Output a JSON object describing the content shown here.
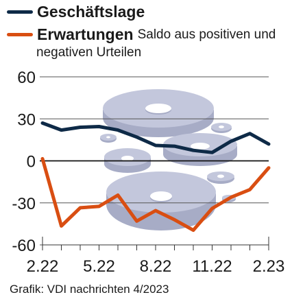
{
  "legend": {
    "items": [
      {
        "name": "Geschäftslage",
        "color": "#0e2a47"
      },
      {
        "name": "Erwartungen",
        "color": "#d94e12"
      }
    ],
    "note_line1": "Saldo aus positiven und",
    "note_line2": "negativen Urteilen"
  },
  "credit": "Grafik: VDI nachrichten 4/2023",
  "chart_data": {
    "type": "line",
    "x": [
      "2.22",
      "3.22",
      "4.22",
      "5.22",
      "6.22",
      "7.22",
      "8.22",
      "9.22",
      "10.22",
      "11.22",
      "12.22",
      "1.23",
      "2.23"
    ],
    "xticks": [
      "2.22",
      "5.22",
      "8.22",
      "11.22",
      "2.23"
    ],
    "yticks": [
      60,
      30,
      0,
      -30,
      -60
    ],
    "ylim": [
      -60,
      60
    ],
    "series": [
      {
        "name": "Geschäftslage",
        "color": "#0e2a47",
        "values": [
          27,
          22,
          24,
          24.5,
          22,
          17,
          11,
          10.5,
          7.5,
          6,
          14,
          19.5,
          12
        ]
      },
      {
        "name": "Erwartungen",
        "color": "#d94e12",
        "values": [
          1.5,
          -46.5,
          -33.5,
          -32.5,
          -24.5,
          -43,
          -35.5,
          -42,
          -49.5,
          -34,
          -26,
          -20.5,
          -5
        ]
      }
    ]
  }
}
